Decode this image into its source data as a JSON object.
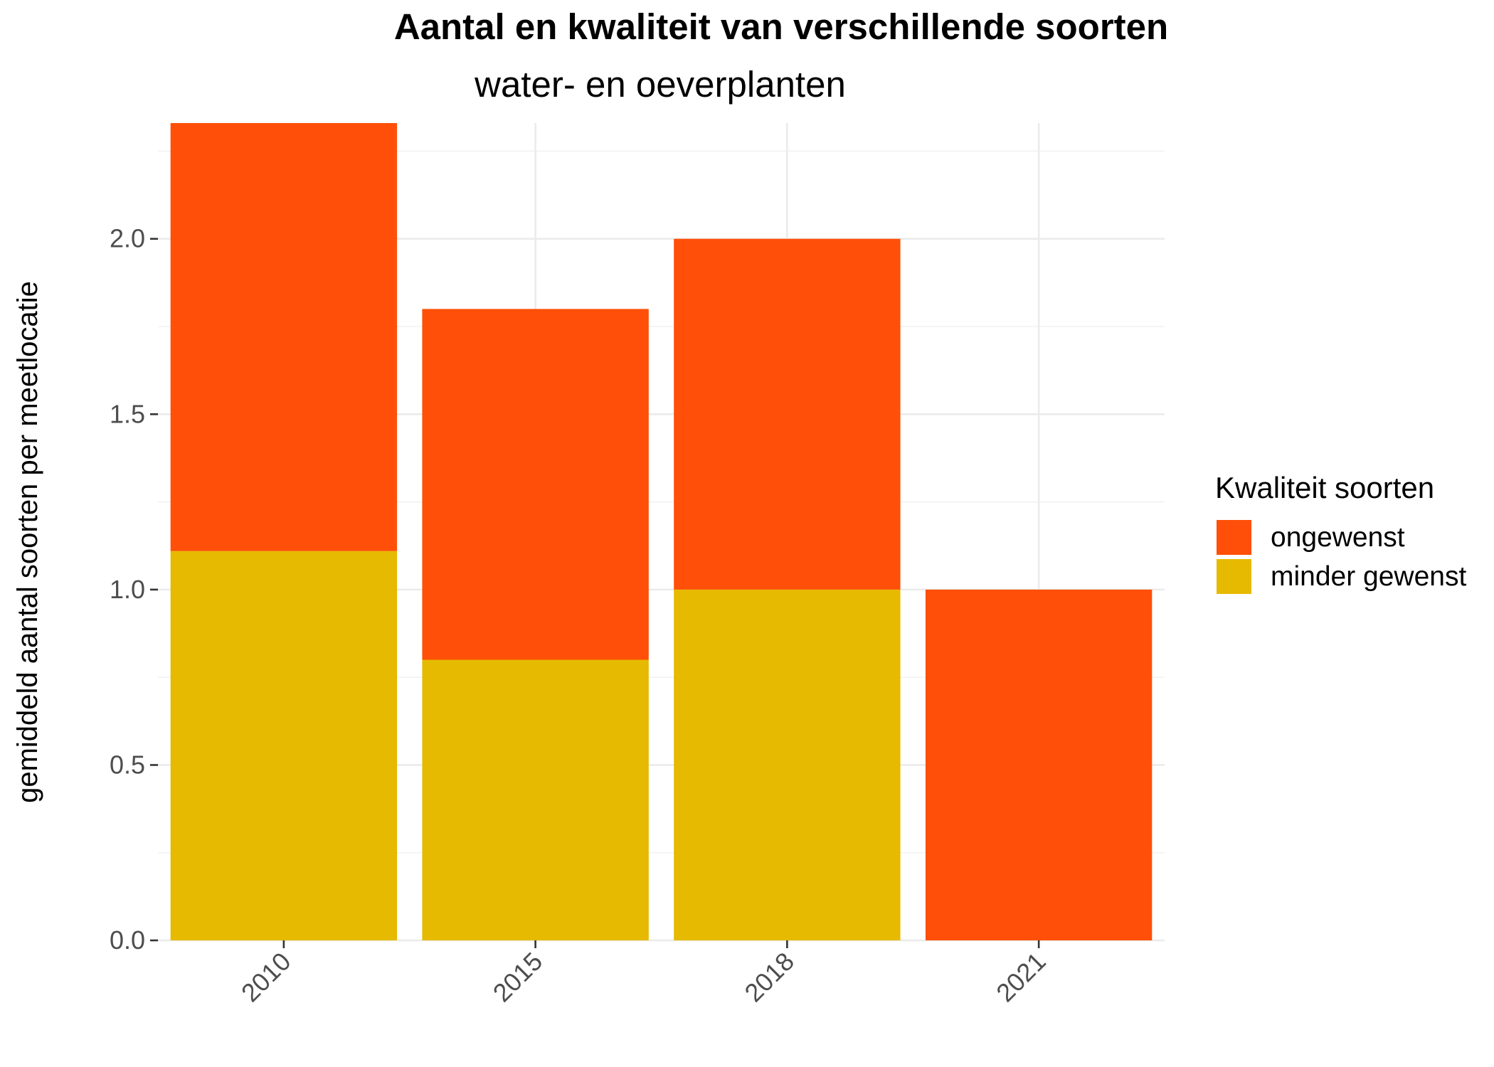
{
  "chart_data": {
    "type": "bar",
    "stacked": true,
    "title": "Aantal en kwaliteit van verschillende soorten",
    "subtitle": "water- en oeverplanten",
    "xlabel": "",
    "ylabel": "gemiddeld aantal soorten per meetlocatie",
    "categories": [
      "2010",
      "2015",
      "2018",
      "2021"
    ],
    "series": [
      {
        "name": "minder gewenst",
        "color": "#E6BA00",
        "values": [
          1.11,
          0.8,
          1.0,
          0.0
        ]
      },
      {
        "name": "ongewenst",
        "color": "#FF4F08",
        "values": [
          1.22,
          1.0,
          1.0,
          1.0
        ]
      }
    ],
    "ylim": [
      0,
      2.33
    ],
    "yticks": [
      0.0,
      0.5,
      1.0,
      1.5,
      2.0
    ],
    "ytick_labels": [
      "0.0",
      "0.5",
      "1.0",
      "1.5",
      "2.0"
    ],
    "grid": true,
    "legend": {
      "title": "Kwaliteit soorten",
      "position": "right",
      "entries": [
        "ongewenst",
        "minder gewenst"
      ]
    }
  }
}
